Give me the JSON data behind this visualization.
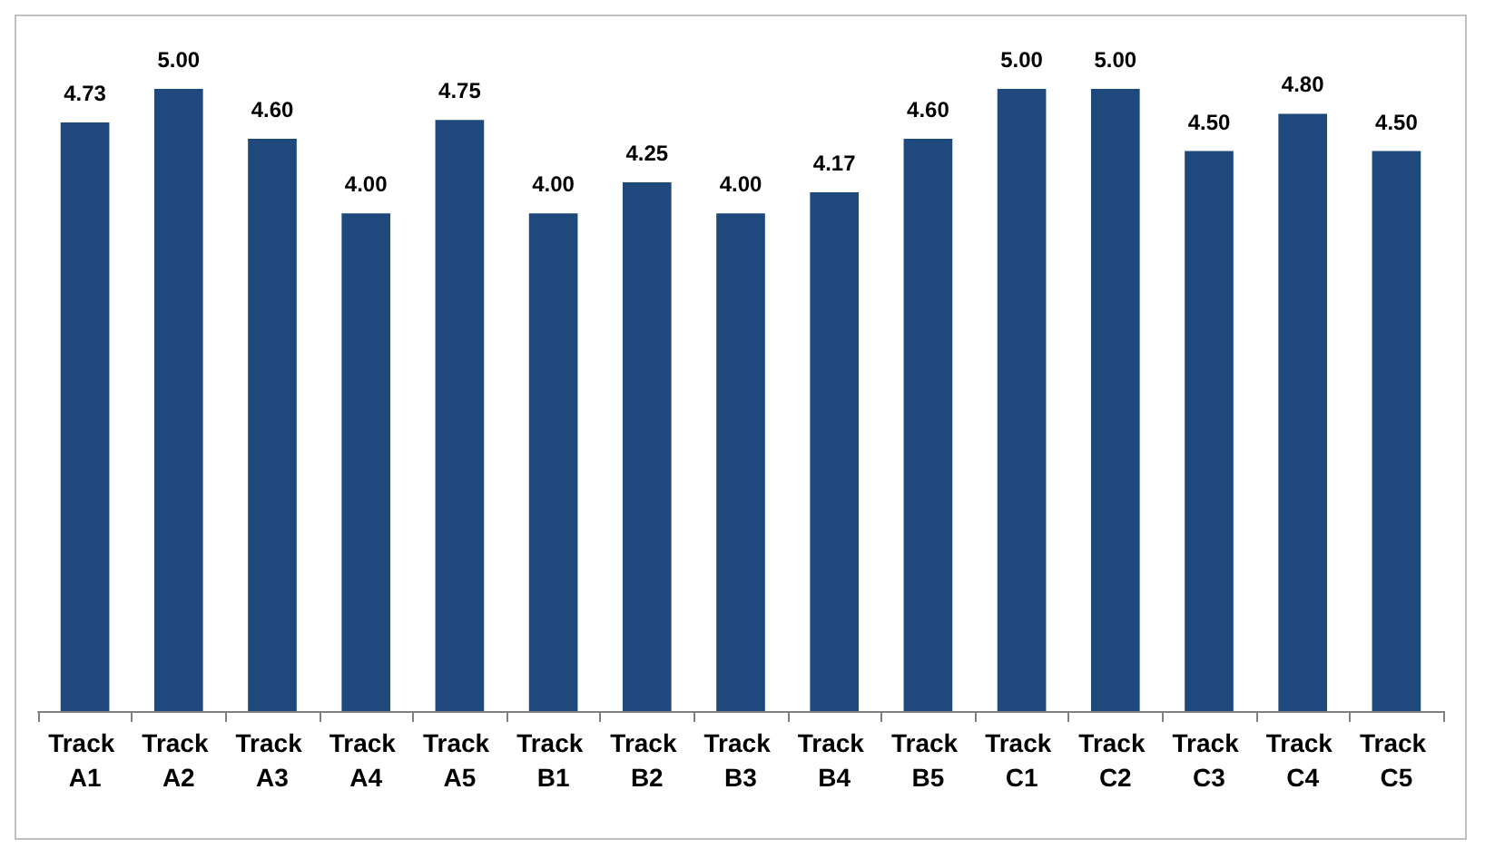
{
  "chart_data": {
    "type": "bar",
    "categories": [
      "Track A1",
      "Track A2",
      "Track A3",
      "Track A4",
      "Track A5",
      "Track B1",
      "Track B2",
      "Track B3",
      "Track B4",
      "Track B5",
      "Track C1",
      "Track C2",
      "Track C3",
      "Track C4",
      "Track C5"
    ],
    "values": [
      4.73,
      5.0,
      4.6,
      4.0,
      4.75,
      4.0,
      4.25,
      4.0,
      4.17,
      4.6,
      5.0,
      5.0,
      4.5,
      4.8,
      4.5
    ],
    "value_labels": [
      "4.73",
      "5.00",
      "4.60",
      "4.00",
      "4.75",
      "4.00",
      "4.25",
      "4.00",
      "4.17",
      "4.60",
      "5.00",
      "5.00",
      "4.50",
      "4.80",
      "4.50"
    ],
    "color": "#1f497d"
  }
}
